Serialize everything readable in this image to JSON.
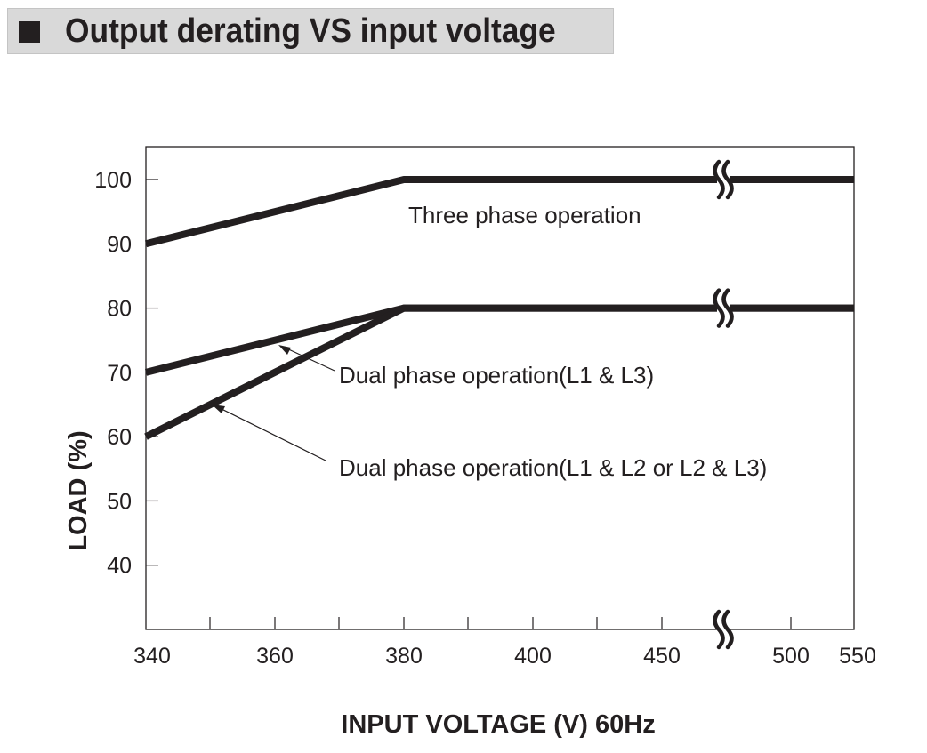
{
  "header": {
    "title": "Output derating VS input voltage",
    "bullet_icon": "square-bullet-icon"
  },
  "colors": {
    "line": "#231f20",
    "title_bg": "#d9d9d9"
  },
  "chart_data": {
    "type": "line",
    "title": "Output derating VS input voltage",
    "xlabel": "INPUT VOLTAGE (V) 60Hz",
    "ylabel": "LOAD (%)",
    "x_ticks": [
      "340",
      "360",
      "380",
      "400",
      "450",
      "500",
      "550"
    ],
    "x_tick_values": [
      340,
      360,
      380,
      400,
      450,
      500,
      550
    ],
    "y_ticks": [
      "40",
      "50",
      "60",
      "70",
      "80",
      "90",
      "100"
    ],
    "y_tick_values": [
      40,
      50,
      60,
      70,
      80,
      90,
      100
    ],
    "ylim": [
      30,
      105
    ],
    "xlim": [
      340,
      550
    ],
    "x_axis_break": true,
    "grid": false,
    "series": [
      {
        "name": "Three phase operation",
        "x": [
          340,
          380,
          550
        ],
        "y": [
          90,
          100,
          100
        ]
      },
      {
        "name": "Dual phase operation(L1 & L3)",
        "x": [
          340,
          380,
          550
        ],
        "y": [
          70,
          80,
          80
        ]
      },
      {
        "name": "Dual phase operation(L1 & L2 or L2 & L3)",
        "x": [
          340,
          380,
          550
        ],
        "y": [
          60,
          80,
          80
        ]
      }
    ]
  }
}
